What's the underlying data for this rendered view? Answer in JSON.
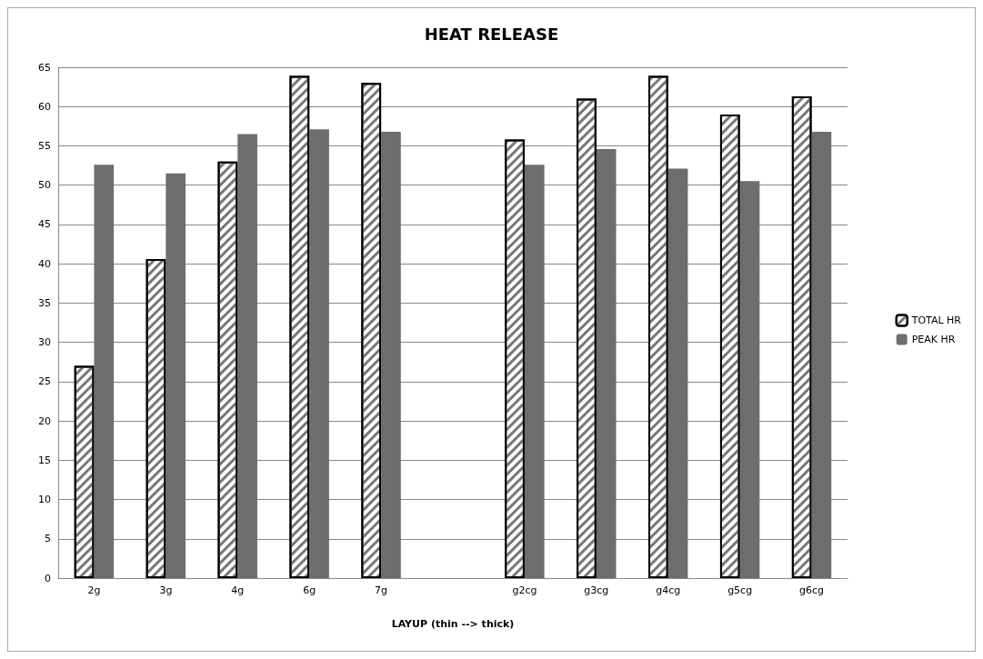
{
  "chart_data": {
    "type": "bar",
    "title": "HEAT RELEASE",
    "xlabel": "LAYUP (thin --> thick)",
    "categories": [
      "2g",
      "3g",
      "4g",
      "6g",
      "7g",
      null,
      "g2cg",
      "g3cg",
      "g4cg",
      "g5cg",
      "g6cg"
    ],
    "series": [
      {
        "name": "TOTAL HR",
        "color": "#ffffff",
        "values": [
          27,
          40.6,
          53,
          63.9,
          63,
          null,
          55.8,
          61,
          63.9,
          59,
          61.3
        ]
      },
      {
        "name": "PEAK HR",
        "color": "#6d6d6d",
        "values": [
          52.6,
          51.5,
          56.5,
          57.1,
          56.8,
          null,
          52.6,
          54.6,
          52.1,
          50.5,
          56.8
        ]
      }
    ],
    "ylim": [
      0,
      65
    ],
    "yticks": [
      0,
      5,
      10,
      15,
      20,
      25,
      30,
      35,
      40,
      45,
      50,
      55,
      60,
      65
    ],
    "grid": "y",
    "legend": "right"
  }
}
